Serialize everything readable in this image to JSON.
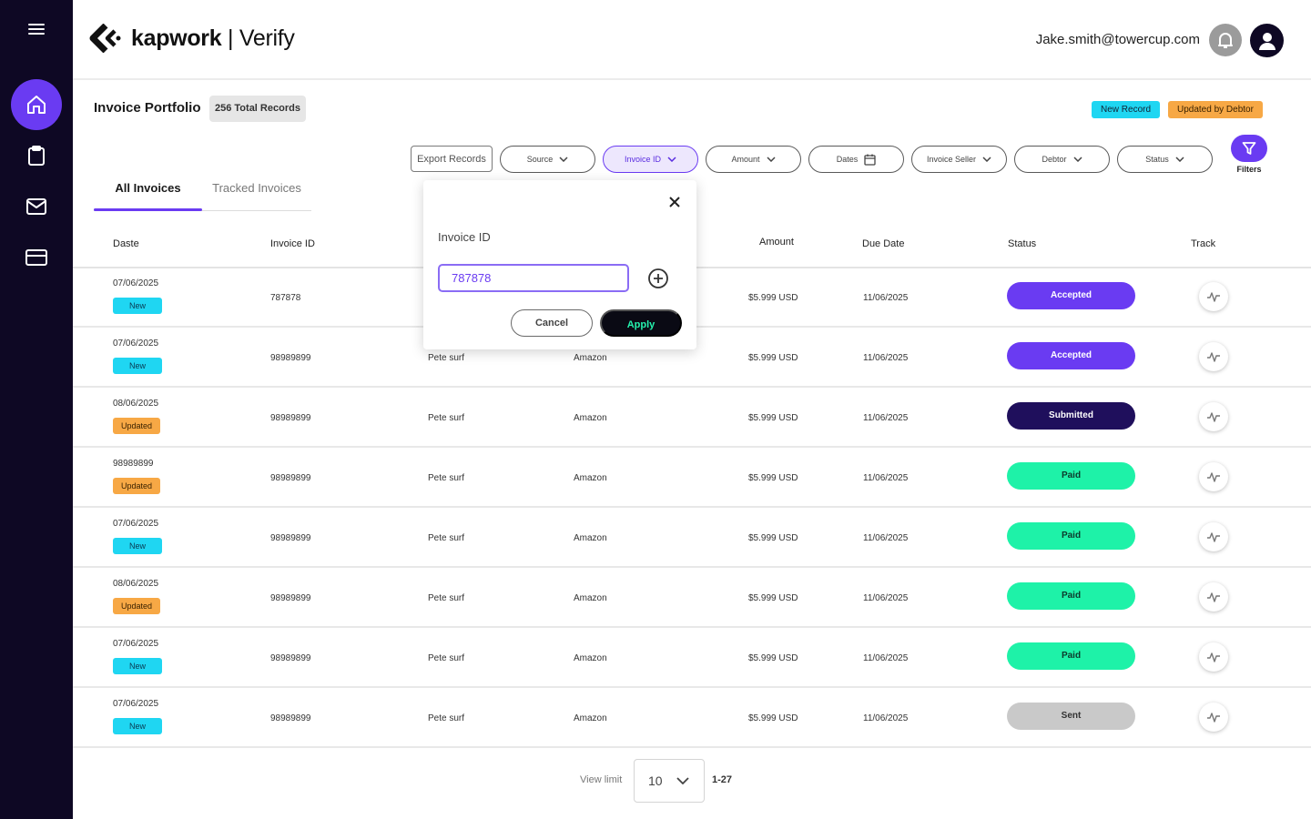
{
  "app": {
    "brand": "kapwork",
    "product": "Verify",
    "user_email": "Jake.smith@towercup.com"
  },
  "sidebar": {
    "items": [
      {
        "icon": "menu-icon"
      },
      {
        "icon": "home-icon",
        "active": true
      },
      {
        "icon": "clipboard-icon"
      },
      {
        "icon": "mail-icon"
      },
      {
        "icon": "credit-card-icon"
      }
    ]
  },
  "page": {
    "title": "Invoice Portfolio",
    "total_records": "256 Total Records",
    "legend": {
      "new": "New Record",
      "updated": "Updated by Debtor"
    }
  },
  "toolbar": {
    "export_label": "Export Records",
    "filters": [
      "Source",
      "Invoice ID",
      "Amount",
      "Dates",
      "Invoice Seller",
      "Debtor",
      "Status"
    ],
    "active_filter": "Invoice ID",
    "filters_label": "Filters"
  },
  "tabs": [
    {
      "label": "All Invoices",
      "active": true
    },
    {
      "label": "Tracked Invoices",
      "active": false
    }
  ],
  "table": {
    "columns": [
      "Daste",
      "Invoice ID",
      "Amount",
      "Due Date",
      "Status",
      "Track"
    ],
    "rows": [
      {
        "date": "07/06/2025",
        "tag": "New",
        "invoice_id": "787878",
        "seller": "",
        "debtor": "",
        "amount": "$5.999 USD",
        "due": "11/06/2025",
        "status": "Accepted"
      },
      {
        "date": "07/06/2025",
        "tag": "New",
        "invoice_id": "98989899",
        "seller": "Pete surf",
        "debtor": "Amazon",
        "amount": "$5.999 USD",
        "due": "11/06/2025",
        "status": "Accepted"
      },
      {
        "date": "08/06/2025",
        "tag": "Updated",
        "invoice_id": "98989899",
        "seller": "Pete surf",
        "debtor": "Amazon",
        "amount": "$5.999 USD",
        "due": "11/06/2025",
        "status": "Submitted"
      },
      {
        "date": "98989899",
        "tag": "Updated",
        "invoice_id": "98989899",
        "seller": "Pete surf",
        "debtor": "Amazon",
        "amount": "$5.999 USD",
        "due": "11/06/2025",
        "status": "Paid"
      },
      {
        "date": "07/06/2025",
        "tag": "New",
        "invoice_id": "98989899",
        "seller": "Pete surf",
        "debtor": "Amazon",
        "amount": "$5.999 USD",
        "due": "11/06/2025",
        "status": "Paid"
      },
      {
        "date": "08/06/2025",
        "tag": "Updated",
        "invoice_id": "98989899",
        "seller": "Pete surf",
        "debtor": "Amazon",
        "amount": "$5.999 USD",
        "due": "11/06/2025",
        "status": "Paid"
      },
      {
        "date": "07/06/2025",
        "tag": "New",
        "invoice_id": "98989899",
        "seller": "Pete surf",
        "debtor": "Amazon",
        "amount": "$5.999 USD",
        "due": "11/06/2025",
        "status": "Paid"
      },
      {
        "date": "07/06/2025",
        "tag": "New",
        "invoice_id": "98989899",
        "seller": "Pete surf",
        "debtor": "Amazon",
        "amount": "$5.999 USD",
        "due": "11/06/2025",
        "status": "Sent"
      }
    ]
  },
  "pagination": {
    "view_limit_label": "View limit",
    "view_limit": "10",
    "range": "1-27"
  },
  "popover": {
    "label": "Invoice ID",
    "value": "787878",
    "cancel": "Cancel",
    "apply": "Apply"
  },
  "colors": {
    "sidebar_bg": "#0e0824",
    "accent": "#6a3bf2",
    "new_tag": "#1fd6f2",
    "updated_tag": "#f7a845",
    "paid": "#1ef2a8",
    "submitted": "#1f0f5c",
    "sent": "#c9c9c9"
  }
}
